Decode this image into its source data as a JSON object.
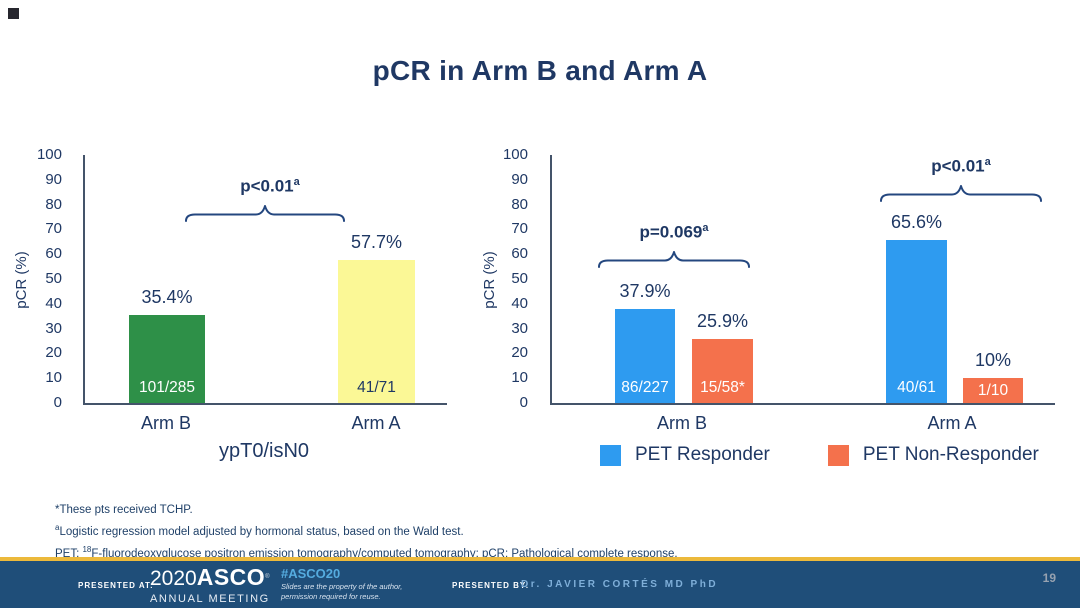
{
  "slide": {
    "title": "pCR in Arm B and Arm A",
    "page_number": "19"
  },
  "colors": {
    "navy_text": "#1F3864",
    "axis_line": "#44546A",
    "green_bar": "#2E9048",
    "yellow_bar": "#FBF896",
    "blue_bar": "#2E9BF0",
    "orange_bar": "#F4714C",
    "gold_line": "#ECB93B",
    "footer_bg": "#1F4E79",
    "hashtag_blue": "#55ACDF",
    "presenter_blue": "#7FAFD9"
  },
  "chart_data": [
    {
      "type": "bar",
      "title": "",
      "ylabel": "pCR (%)",
      "xlabel": "ypT0/isN0",
      "ylim": [
        0,
        100
      ],
      "yticks": [
        0,
        10,
        20,
        30,
        40,
        50,
        60,
        70,
        80,
        90,
        100
      ],
      "categories": [
        "Arm B",
        "Arm A"
      ],
      "values": [
        35.4,
        57.7
      ],
      "bars": [
        {
          "category": "Arm B",
          "value": 35.4,
          "value_label": "35.4%",
          "count_label": "101/285",
          "color": "#2E9048",
          "count_color": "#FFFFFF"
        },
        {
          "category": "Arm A",
          "value": 57.7,
          "value_label": "57.7%",
          "count_label": "41/71",
          "color": "#FBF896",
          "count_color": "#1F3864"
        }
      ],
      "annotations": [
        {
          "text": "p<0.01",
          "superscript": "a",
          "between": [
            "Arm B",
            "Arm A"
          ]
        }
      ]
    },
    {
      "type": "grouped-bar",
      "title": "",
      "ylabel": "pCR (%)",
      "xlabel": "",
      "ylim": [
        0,
        100
      ],
      "yticks": [
        0,
        10,
        20,
        30,
        40,
        50,
        60,
        70,
        80,
        90,
        100
      ],
      "categories": [
        "Arm B",
        "Arm A"
      ],
      "series": [
        {
          "name": "PET Responder",
          "color": "#2E9BF0",
          "values": [
            37.9,
            65.6
          ]
        },
        {
          "name": "PET Non-Responder",
          "color": "#F4714C",
          "values": [
            25.9,
            10
          ]
        }
      ],
      "groups": [
        {
          "category": "Arm B",
          "annotation": {
            "text": "p=0.069",
            "superscript": "a"
          },
          "bars": [
            {
              "series": "PET Responder",
              "value": 37.9,
              "value_label": "37.9%",
              "count_label": "86/227",
              "color": "#2E9BF0",
              "count_color": "#FFFFFF"
            },
            {
              "series": "PET Non-Responder",
              "value": 25.9,
              "value_label": "25.9%",
              "count_label": "15/58*",
              "color": "#F4714C",
              "count_color": "#FFFFFF"
            }
          ]
        },
        {
          "category": "Arm A",
          "annotation": {
            "text": "p<0.01",
            "superscript": "a"
          },
          "bars": [
            {
              "series": "PET Responder",
              "value": 65.6,
              "value_label": "65.6%",
              "count_label": "40/61",
              "color": "#2E9BF0",
              "count_color": "#FFFFFF"
            },
            {
              "series": "PET Non-Responder",
              "value": 10,
              "value_label": "10%",
              "count_label": "1/10",
              "color": "#F4714C",
              "count_color": "#FFFFFF"
            }
          ]
        }
      ],
      "legend": [
        {
          "label": "PET Responder",
          "color": "#2E9BF0"
        },
        {
          "label": "PET Non-Responder",
          "color": "#F4714C"
        }
      ]
    }
  ],
  "footnotes": [
    {
      "pre": "*These pts received TCHP.",
      "sup": "",
      "post": ""
    },
    {
      "pre": "",
      "sup": "a",
      "post": "Logistic regression model adjusted by hormonal status, based on the Wald test."
    },
    {
      "pre": "PET: ",
      "sup": "18",
      "post": "F-fluorodeoxyglucose positron emission tomography/computed tomography; pCR: Pathological complete response."
    }
  ],
  "footer": {
    "presented_at_label": "PRESENTED AT:",
    "logo": {
      "year": "2020",
      "name": "ASCO",
      "reg": "®",
      "subtitle": "ANNUAL MEETING"
    },
    "hashtag": "#ASCO20",
    "disclaimer_line1": "Slides are the property of the author,",
    "disclaimer_line2": "permission required for reuse.",
    "presented_by_label": "PRESENTED BY:",
    "presenter": "Dr. JAVIER CORTÉS MD PhD"
  }
}
